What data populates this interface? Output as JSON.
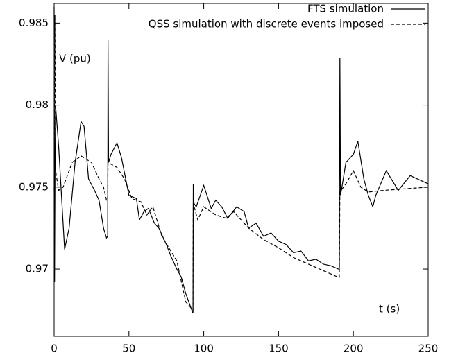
{
  "chart_data": {
    "type": "line",
    "y_label": "V (pu)",
    "x_label": "t (s)",
    "xlim": [
      0,
      250
    ],
    "xticks": [
      0,
      50,
      100,
      150,
      200,
      250
    ],
    "ylim": [
      0.9659,
      0.9862
    ],
    "yticks": [
      0.97,
      0.975,
      0.98,
      0.985
    ],
    "grid": false,
    "legend": "upper right",
    "series": [
      {
        "name": "FTS simulation",
        "color": "#000000",
        "line_style": "solid",
        "x": [
          0,
          0.3,
          0.6,
          1,
          3,
          7,
          10,
          14,
          18,
          20,
          23,
          27,
          30,
          33,
          35,
          35.8,
          36,
          36.4,
          38,
          42,
          45,
          50,
          55,
          57,
          60,
          63,
          67,
          70,
          75,
          78,
          82,
          85,
          88,
          92,
          92.8,
          93,
          93.5,
          95,
          100,
          105,
          108,
          112,
          116,
          122,
          127,
          130,
          135,
          140,
          145,
          150,
          155,
          160,
          165,
          170,
          175,
          180,
          185,
          190,
          190.6,
          191,
          191.4,
          192,
          195,
          200,
          203,
          207,
          210,
          213,
          215,
          222,
          230,
          238,
          250
        ],
        "values": [
          0.986,
          0.9692,
          0.976,
          0.9799,
          0.9775,
          0.9712,
          0.9725,
          0.9765,
          0.979,
          0.9787,
          0.9755,
          0.9748,
          0.9742,
          0.9725,
          0.9719,
          0.972,
          0.984,
          0.9765,
          0.977,
          0.9777,
          0.9768,
          0.9745,
          0.9743,
          0.973,
          0.9735,
          0.9737,
          0.9728,
          0.9725,
          0.9715,
          0.9708,
          0.97,
          0.9695,
          0.9685,
          0.9675,
          0.9673,
          0.9752,
          0.974,
          0.9738,
          0.9751,
          0.9737,
          0.9742,
          0.9738,
          0.9731,
          0.9738,
          0.9735,
          0.9725,
          0.9728,
          0.972,
          0.9722,
          0.9717,
          0.9715,
          0.971,
          0.9711,
          0.9705,
          0.9706,
          0.9703,
          0.9702,
          0.97,
          0.97,
          0.9829,
          0.9745,
          0.9748,
          0.9765,
          0.977,
          0.9778,
          0.9755,
          0.9745,
          0.9738,
          0.9745,
          0.976,
          0.9748,
          0.9757,
          0.9752
        ]
      },
      {
        "name": "QSS simulation with discrete events imposed",
        "color": "#000000",
        "line_style": "dashed",
        "x": [
          0,
          0.5,
          1,
          3,
          6,
          12,
          18,
          25,
          30,
          33,
          35,
          35.8,
          36,
          42,
          47,
          52,
          58,
          62,
          66,
          72,
          82,
          88,
          92.8,
          93,
          96,
          100,
          108,
          115,
          120,
          130,
          140,
          150,
          160,
          170,
          180,
          190,
          190.6,
          191,
          195,
          200,
          205,
          210,
          220,
          235,
          250
        ],
        "values": [
          0.9748,
          0.9855,
          0.976,
          0.9748,
          0.975,
          0.9765,
          0.9769,
          0.9765,
          0.9755,
          0.975,
          0.9742,
          0.9742,
          0.9765,
          0.9762,
          0.9755,
          0.9743,
          0.9741,
          0.9733,
          0.9738,
          0.972,
          0.9705,
          0.968,
          0.9675,
          0.974,
          0.973,
          0.9738,
          0.9733,
          0.9731,
          0.9735,
          0.9725,
          0.9718,
          0.9713,
          0.9707,
          0.9703,
          0.9699,
          0.9695,
          0.9695,
          0.9747,
          0.9752,
          0.976,
          0.975,
          0.9747,
          0.9748,
          0.9749,
          0.975
        ]
      }
    ]
  }
}
